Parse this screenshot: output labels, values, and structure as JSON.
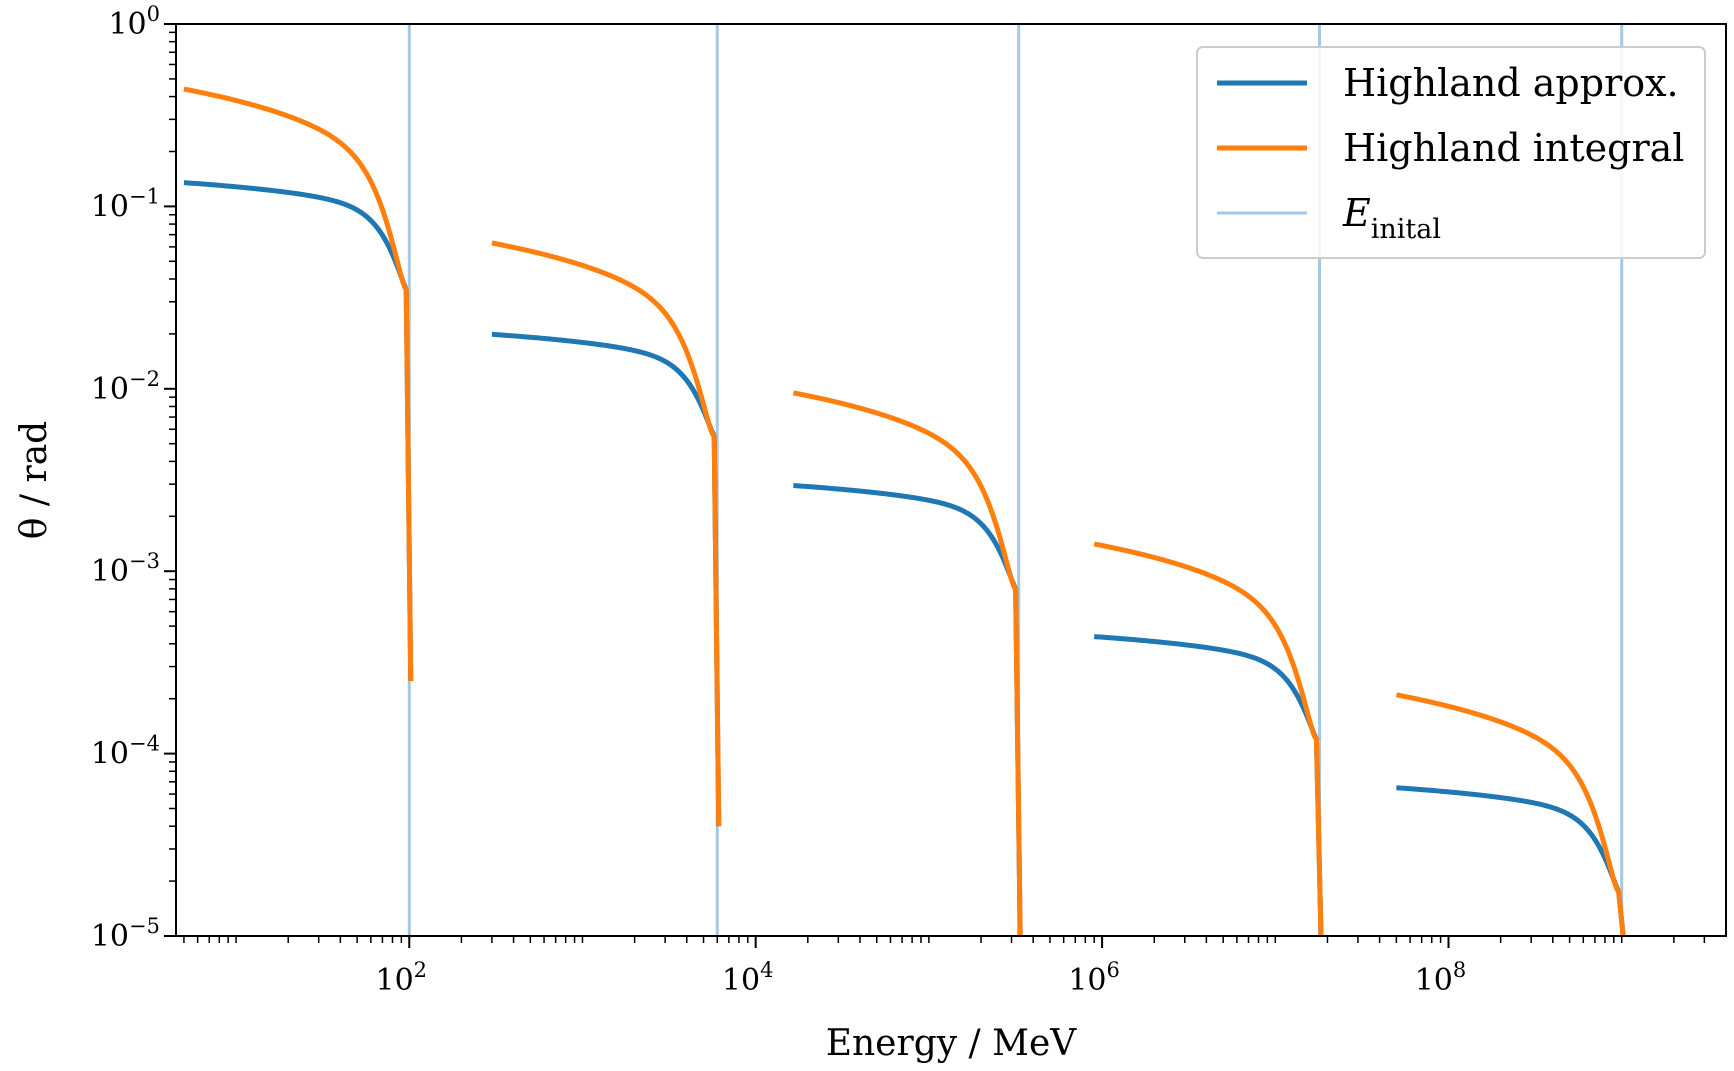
{
  "chart_data": {
    "type": "line",
    "title": "",
    "xlabel": "Energy / MeV",
    "ylabel": "θ / rad",
    "xscale": "log",
    "yscale": "log",
    "xlim": [
      4.5,
      4000000000.0
    ],
    "ylim": [
      1e-05,
      1
    ],
    "x_ticks": [
      {
        "value": 100,
        "label": "10",
        "exp": "2"
      },
      {
        "value": 10000,
        "label": "10",
        "exp": "4"
      },
      {
        "value": 1000000,
        "label": "10",
        "exp": "6"
      },
      {
        "value": 100000000,
        "label": "10",
        "exp": "8"
      }
    ],
    "y_ticks": [
      {
        "value": 1e-05,
        "label": "10",
        "exp": "−5"
      },
      {
        "value": 0.0001,
        "label": "10",
        "exp": "−4"
      },
      {
        "value": 0.001,
        "label": "10",
        "exp": "−3"
      },
      {
        "value": 0.01,
        "label": "10",
        "exp": "−2"
      },
      {
        "value": 0.1,
        "label": "10",
        "exp": "−1"
      },
      {
        "value": 1,
        "label": "10",
        "exp": "0"
      }
    ],
    "grid": false,
    "legend_position": "top-right",
    "legend": [
      {
        "label": "Highland approx.",
        "color": "#1f77b4",
        "style": "line"
      },
      {
        "label": "Highland integral",
        "color": "#ff7f0e",
        "style": "line"
      },
      {
        "label": "E",
        "sub": "inital",
        "color": "#a6c8e0",
        "style": "thin-line"
      }
    ],
    "series": [
      {
        "name": "Highland approx.",
        "color": "#1f77b4",
        "segments": [
          {
            "E0": 100,
            "theta_start": 0.135,
            "theta_knee": 0.035,
            "theta_end": 0.00025
          },
          {
            "E0": 6000,
            "theta_start": 0.0199,
            "theta_knee": 0.0055,
            "theta_end": 4e-05
          },
          {
            "E0": 330000,
            "theta_start": 0.00295,
            "theta_knee": 0.0008,
            "theta_end": 1e-05
          },
          {
            "E0": 18000000,
            "theta_start": 0.000438,
            "theta_knee": 0.00012,
            "theta_end": 1e-05
          },
          {
            "E0": 1000000000,
            "theta_start": 6.5e-05,
            "theta_knee": 1.75e-05,
            "theta_end": 1e-05
          }
        ]
      },
      {
        "name": "Highland integral",
        "color": "#ff7f0e",
        "segments": [
          {
            "E0": 100,
            "theta_start": 0.44,
            "theta_knee": 0.035,
            "theta_end": 0.00025
          },
          {
            "E0": 6000,
            "theta_start": 0.063,
            "theta_knee": 0.0055,
            "theta_end": 4e-05
          },
          {
            "E0": 330000,
            "theta_start": 0.0095,
            "theta_knee": 0.0008,
            "theta_end": 1e-05
          },
          {
            "E0": 18000000,
            "theta_start": 0.00141,
            "theta_knee": 0.00012,
            "theta_end": 1e-05
          },
          {
            "E0": 1000000000,
            "theta_start": 0.00021,
            "theta_knee": 1.75e-05,
            "theta_end": 1e-05
          }
        ]
      }
    ],
    "vlines": {
      "name": "E_inital",
      "color": "#a6c8e0",
      "x": [
        100,
        6000,
        330000,
        18000000,
        1000000000
      ]
    }
  }
}
